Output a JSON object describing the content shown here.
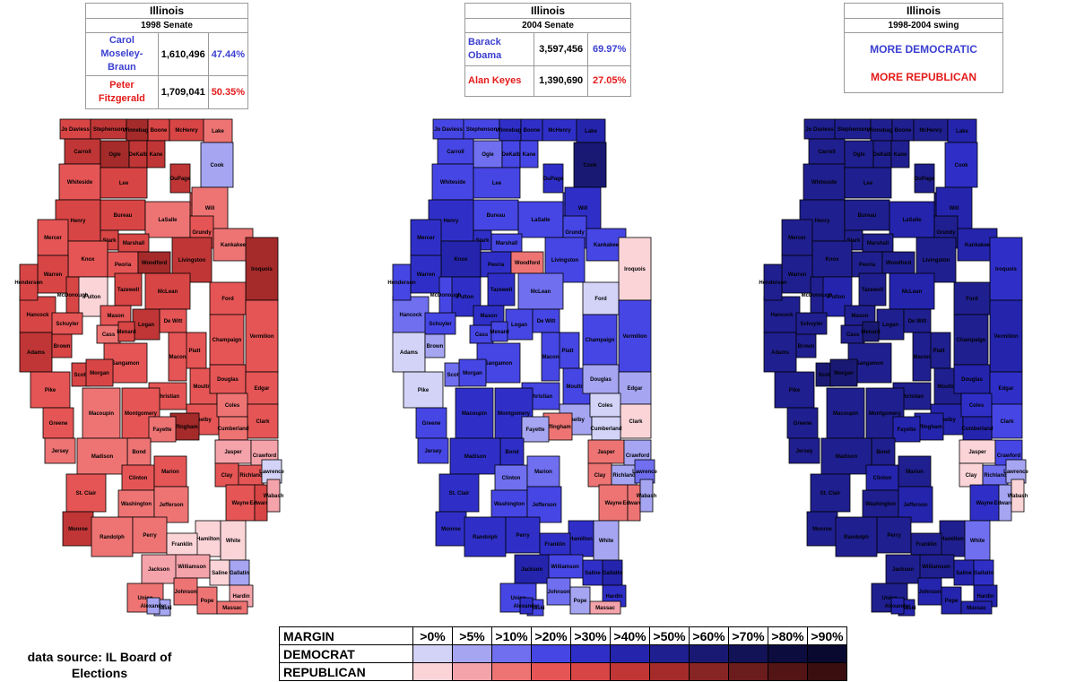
{
  "panels": {
    "p1998": {
      "title": "Illinois",
      "subtitle": "1998 Senate",
      "dem_name": "Carol Moseley-Braun",
      "dem_votes": "1,610,496",
      "dem_pct": "47.44%",
      "rep_name": "Peter Fitzgerald",
      "rep_votes": "1,709,041",
      "rep_pct": "50.35%"
    },
    "p2004": {
      "title": "Illinois",
      "subtitle": "2004 Senate",
      "dem_name": "Barack Obama",
      "dem_votes": "3,597,456",
      "dem_pct": "69.97%",
      "rep_name": "Alan Keyes",
      "rep_votes": "1,390,690",
      "rep_pct": "27.05%"
    },
    "pswing": {
      "title": "Illinois",
      "subtitle": "1998-2004 swing",
      "more_dem": "MORE DEMOCRATIC",
      "more_rep": "MORE REPUBLICAN"
    }
  },
  "colors": {
    "dem_text": "#3b3fd0",
    "rep_text": "#e41a1a",
    "dem": [
      "#d3d3f8",
      "#a5a5f2",
      "#6f6ff0",
      "#4646e4",
      "#2f2fc8",
      "#2424ad",
      "#1f1f8f",
      "#191974",
      "#121257",
      "#0c0c3f",
      "#090930"
    ],
    "rep": [
      "#fbd4d8",
      "#f5a3ab",
      "#ee7474",
      "#e55555",
      "#d84545",
      "#c03636",
      "#a52b2b",
      "#872424",
      "#6b1c1c",
      "#521414",
      "#3a0e0e"
    ],
    "border": "#000000"
  },
  "legend": {
    "margin_label": "MARGIN",
    "dem_label": "DEMOCRAT",
    "rep_label": "REPUBLICAN",
    "thresholds": [
      ">0%",
      ">5%",
      ">10%",
      ">20%",
      ">30%",
      ">40%",
      ">50%",
      ">60%",
      ">70%",
      ">80%",
      ">90%"
    ],
    "dem_colors": [
      "#d3d3f8",
      "#a5a5f2",
      "#6f6ff0",
      "#4646e4",
      "#2f2fc8",
      "#2424ad",
      "#1f1f8f",
      "#191974",
      "#121257",
      "#0c0c3f",
      "#090930"
    ],
    "rep_colors": [
      "#fbd4d8",
      "#f5a3ab",
      "#ee7474",
      "#e55555",
      "#d84545",
      "#c03636",
      "#a52b2b",
      "#872424",
      "#6b1c1c",
      "#521414",
      "#3a0e0e"
    ]
  },
  "source": "data source: IL Board of Elections",
  "counties": [
    "Jo Daviess",
    "Stephenson",
    "Winnebago",
    "Boone",
    "McHenry",
    "Lake",
    "Carroll",
    "Ogle",
    "DeKalb",
    "Kane",
    "DuPage",
    "Cook",
    "Whiteside",
    "Lee",
    "Kendall",
    "Will",
    "Henry",
    "Bureau",
    "LaSalle",
    "Grundy",
    "Mercer",
    "Stark",
    "Marshall",
    "Kankakee",
    "Knox",
    "Peoria",
    "Woodford",
    "Livingston",
    "Iroquois",
    "Fulton",
    "Tazewell",
    "McLean",
    "Ford",
    "Hancock",
    "Mason",
    "Logan",
    "De Witt",
    "Champaign",
    "Vermilion",
    "Schuyler",
    "Cass",
    "Menard",
    "Adams",
    "Brown",
    "Sangamon",
    "Piatt",
    "Macon",
    "Pike",
    "Scott",
    "Morgan",
    "Moultrie",
    "Douglas",
    "Edgar",
    "Christian",
    "Shelby",
    "Coles",
    "Greene",
    "Macoupin",
    "Montgomery",
    "Clark",
    "Jersey",
    "Cumberland",
    "Effingham",
    "Jasper",
    "Crawford",
    "Fayette",
    "Bond",
    "Madison",
    "Clay",
    "Richland",
    "Lawrence",
    "Clinton",
    "Marion",
    "St. Clair",
    "Washington",
    "Wayne",
    "Edwards",
    "Wabash",
    "Jefferson",
    "Monroe",
    "Randolph",
    "Perry",
    "Hamilton",
    "White",
    "Franklin",
    "Williamson",
    "Saline",
    "Gallatin",
    "Jackson",
    "Hardin",
    "Union",
    "Johnson",
    "Pope",
    "Massac",
    "Pulaski",
    "Alexander",
    "Warren",
    "Henderson",
    "McDonough"
  ],
  "maps": {
    "m1998": {
      "fills": [
        5,
        6,
        7,
        5,
        5,
        3,
        6,
        7,
        6,
        6,
        6,
        -2,
        4,
        5,
        4,
        3,
        5,
        5,
        3,
        4,
        4,
        5,
        5,
        3,
        4,
        4,
        7,
        6,
        7,
        1,
        5,
        5,
        4,
        5,
        4,
        6,
        4,
        4,
        4,
        4,
        3,
        5,
        6,
        5,
        4,
        4,
        4,
        4,
        5,
        5,
        4,
        4,
        4,
        4,
        4,
        3,
        4,
        3,
        4,
        4,
        3,
        3,
        7,
        2,
        2,
        3,
        3,
        3,
        4,
        4,
        -1,
        4,
        4,
        4,
        3,
        4,
        5,
        2,
        3,
        6,
        3,
        3,
        1,
        1,
        1,
        2,
        1,
        -2,
        2,
        2,
        3,
        3,
        3,
        3,
        -2,
        -2,
        5,
        5,
        5
      ]
    },
    "m2004": {
      "fills": [
        -4,
        -4,
        -5,
        -5,
        -5,
        -6,
        -4,
        -3,
        -4,
        -4,
        -5,
        -8,
        -4,
        -4,
        -4,
        -5,
        -5,
        -4,
        -4,
        -4,
        -5,
        -5,
        -4,
        -4,
        -6,
        -5,
        3,
        -4,
        1,
        -5,
        -5,
        -3,
        -1,
        -3,
        -5,
        -4,
        -4,
        -4,
        -4,
        -4,
        -4,
        -4,
        -1,
        -2,
        -4,
        -4,
        -4,
        -1,
        -3,
        -4,
        -4,
        -2,
        -2,
        -4,
        -2,
        -1,
        -4,
        -5,
        -5,
        1,
        -4,
        -1,
        3,
        3,
        -2,
        -2,
        -5,
        -5,
        3,
        -2,
        -3,
        -3,
        -3,
        -5,
        -4,
        3,
        3,
        -2,
        -4,
        -5,
        -5,
        -5,
        -5,
        -2,
        -5,
        -4,
        -5,
        -6,
        -6,
        -5,
        -4,
        -3,
        -2,
        2,
        -4,
        -5,
        -5,
        -4,
        -4
      ]
    },
    "mswing": {
      "fills": [
        -7,
        -7,
        -7,
        -7,
        -7,
        -6,
        -7,
        -7,
        -7,
        -7,
        -7,
        -5,
        -7,
        -7,
        -7,
        -6,
        -7,
        -7,
        -6,
        -7,
        -7,
        -7,
        -7,
        -6,
        -7,
        -7,
        -7,
        -7,
        -5,
        -6,
        -7,
        -6,
        -7,
        -7,
        -7,
        -7,
        -7,
        -7,
        -6,
        -7,
        -7,
        -8,
        -7,
        -7,
        -7,
        -7,
        -7,
        -7,
        -8,
        -8,
        -7,
        -6,
        -5,
        -7,
        -6,
        -5,
        -7,
        -7,
        -7,
        -4,
        -7,
        -6,
        -6,
        1,
        -4,
        -6,
        -7,
        -7,
        1,
        -3,
        -2,
        -6,
        -7,
        -7,
        -7,
        -5,
        -2,
        1,
        -6,
        -7,
        -7,
        -7,
        -7,
        -3,
        -7,
        -7,
        -6,
        -5,
        -7,
        -6,
        -7,
        -6,
        -6,
        -6,
        -6,
        -6,
        -7,
        -7,
        -7
      ]
    }
  }
}
